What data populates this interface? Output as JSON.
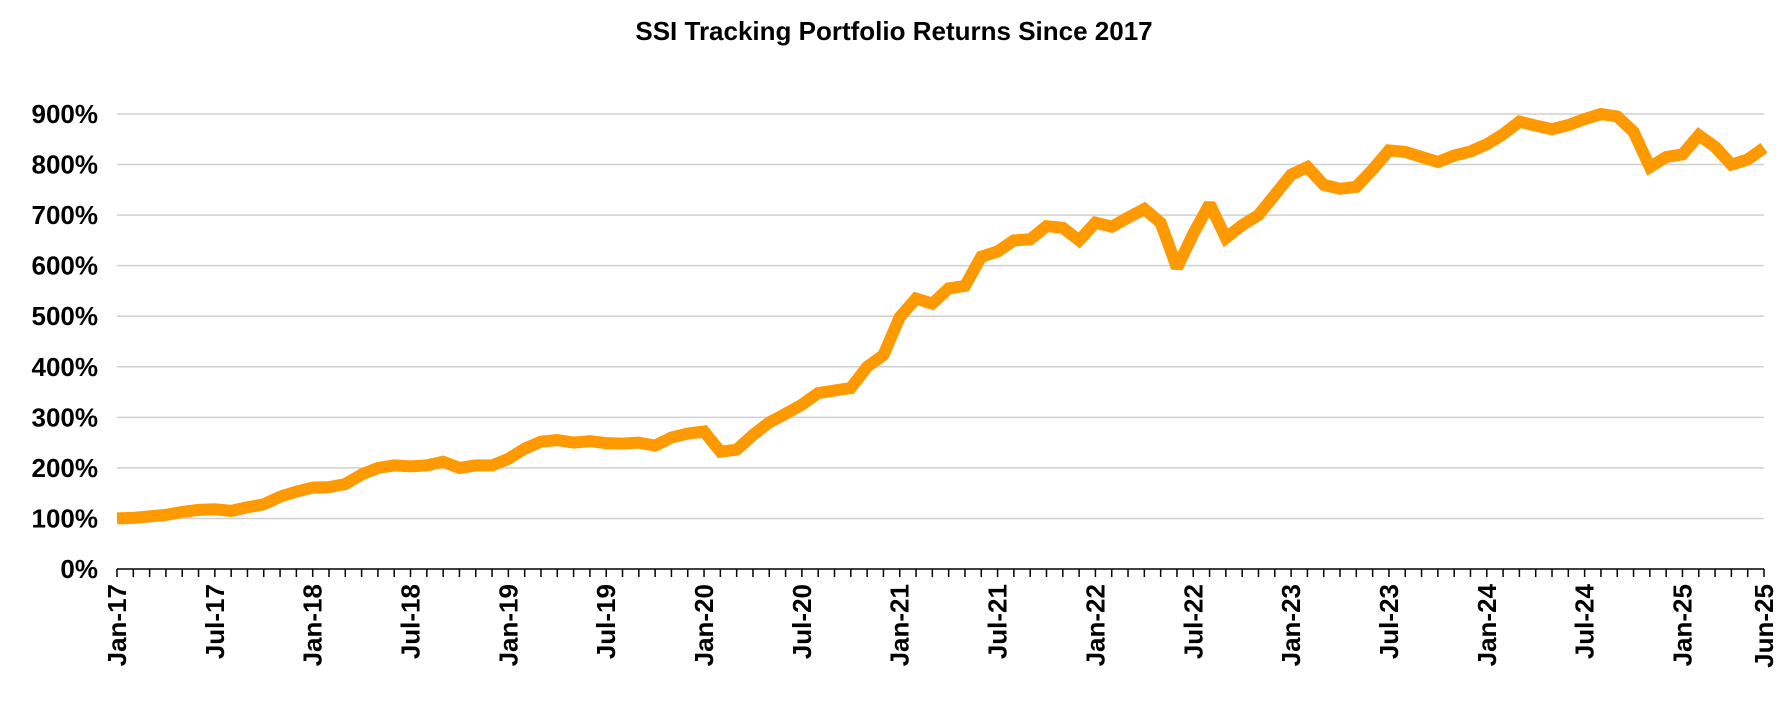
{
  "chart_data": {
    "type": "line",
    "title": "SSI Tracking Portfolio Returns Since 2017",
    "xlabel": "",
    "ylabel": "",
    "ylim": [
      0,
      900
    ],
    "y_ticks": [
      "0%",
      "100%",
      "200%",
      "300%",
      "400%",
      "500%",
      "600%",
      "700%",
      "800%",
      "900%"
    ],
    "x_tick_labels": [
      "Jan-17",
      "Jul-17",
      "Jan-18",
      "Jul-18",
      "Jan-19",
      "Jul-19",
      "Jan-20",
      "Jul-20",
      "Jan-21",
      "Jul-21",
      "Jan-22",
      "Jul-22",
      "Jan-23",
      "Jul-23",
      "Jan-24",
      "Jul-24",
      "Jan-25",
      "Jun-25"
    ],
    "x_range": [
      "2017-01",
      "2025-06"
    ],
    "grid": true,
    "line_color": "#FF9900",
    "series": [
      {
        "x": [
          "2017-01",
          "2017-02",
          "2017-03",
          "2017-04",
          "2017-05",
          "2017-06",
          "2017-07",
          "2017-08",
          "2017-09",
          "2017-10",
          "2017-11",
          "2017-12",
          "2018-01",
          "2018-02",
          "2018-03",
          "2018-04",
          "2018-05",
          "2018-06",
          "2018-07",
          "2018-08",
          "2018-09",
          "2018-10",
          "2018-11",
          "2018-12",
          "2019-01",
          "2019-02",
          "2019-03",
          "2019-04",
          "2019-05",
          "2019-06",
          "2019-07",
          "2019-08",
          "2019-09",
          "2019-10",
          "2019-11",
          "2019-12",
          "2020-01",
          "2020-02",
          "2020-03",
          "2020-04",
          "2020-05",
          "2020-06",
          "2020-07",
          "2020-08",
          "2020-09",
          "2020-10",
          "2020-11",
          "2020-12",
          "2021-01",
          "2021-02",
          "2021-03",
          "2021-04",
          "2021-05",
          "2021-06",
          "2021-07",
          "2021-08",
          "2021-09",
          "2021-10",
          "2021-11",
          "2021-12",
          "2022-01",
          "2022-02",
          "2022-03",
          "2022-04",
          "2022-05",
          "2022-06",
          "2022-07",
          "2022-08",
          "2022-09",
          "2022-10",
          "2022-11",
          "2022-12",
          "2023-01",
          "2023-02",
          "2023-03",
          "2023-04",
          "2023-05",
          "2023-06",
          "2023-07",
          "2023-08",
          "2023-09",
          "2023-10",
          "2023-11",
          "2023-12",
          "2024-01",
          "2024-02",
          "2024-03",
          "2024-04",
          "2024-05",
          "2024-06",
          "2024-07",
          "2024-08",
          "2024-09",
          "2024-10",
          "2024-11",
          "2024-12",
          "2025-01",
          "2025-02",
          "2025-03",
          "2025-04",
          "2025-05",
          "2025-06"
        ],
        "values": [
          100,
          101,
          104,
          107,
          113,
          117,
          118,
          115,
          122,
          128,
          143,
          153,
          161,
          162,
          168,
          187,
          200,
          205,
          203,
          205,
          212,
          200,
          205,
          205,
          218,
          238,
          252,
          255,
          250,
          253,
          249,
          248,
          250,
          244,
          260,
          268,
          272,
          232,
          236,
          265,
          290,
          307,
          325,
          348,
          353,
          358,
          400,
          423,
          498,
          535,
          525,
          555,
          560,
          618,
          628,
          650,
          652,
          678,
          675,
          650,
          685,
          677,
          695,
          712,
          685,
          596,
          663,
          722,
          655,
          680,
          700,
          740,
          780,
          795,
          760,
          752,
          756,
          790,
          828,
          825,
          815,
          805,
          818,
          826,
          840,
          860,
          885,
          877,
          870,
          878,
          890,
          900,
          895,
          865,
          795,
          815,
          820,
          858,
          835,
          800,
          810,
          833
        ]
      }
    ]
  }
}
